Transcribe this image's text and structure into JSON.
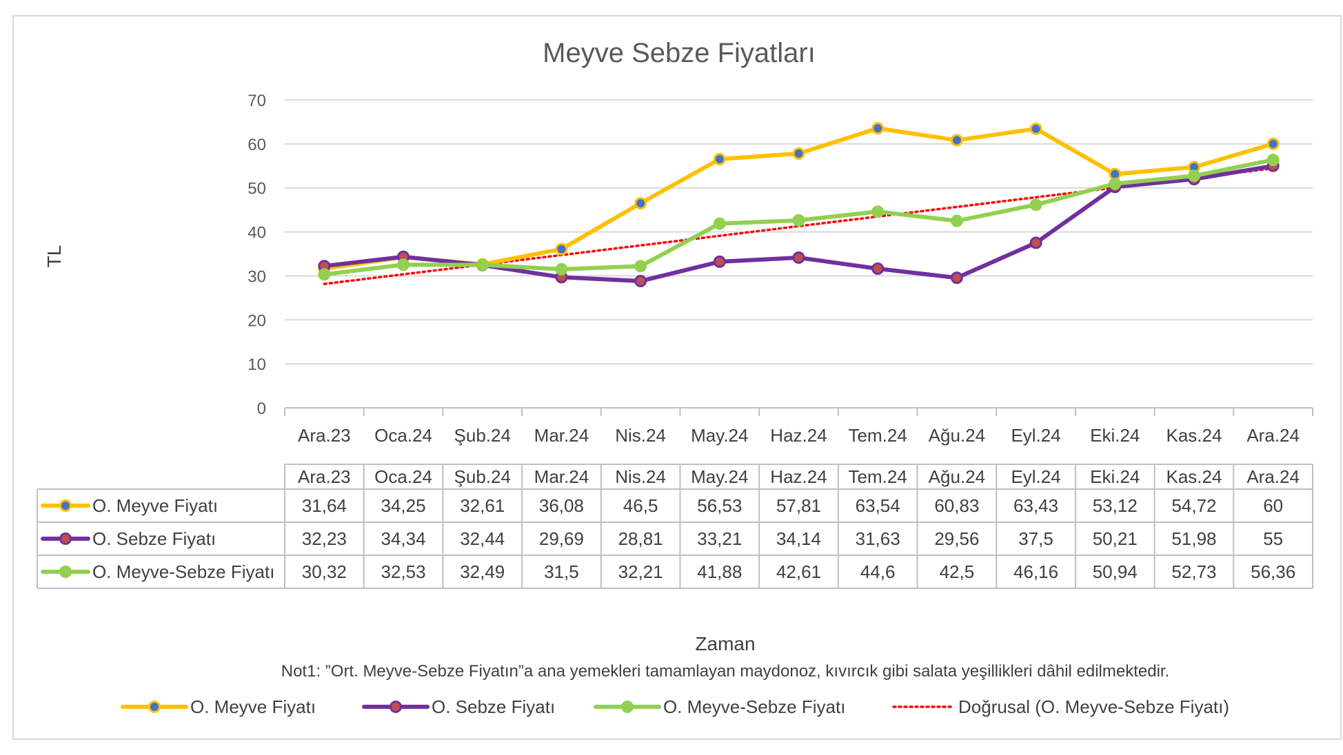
{
  "chart_data": {
    "type": "line",
    "title": "Meyve Sebze Fiyatları",
    "ylabel": "TL",
    "xlabel": "Zaman",
    "ylim": [
      0,
      70
    ],
    "yticks": [
      0,
      10,
      20,
      30,
      40,
      50,
      60,
      70
    ],
    "grid": true,
    "categories": [
      "Ara.23",
      "Oca.24",
      "Şub.24",
      "Mar.24",
      "Nis.24",
      "May.24",
      "Haz.24",
      "Tem.24",
      "Ağu.24",
      "Eyl.24",
      "Eki.24",
      "Kas.24",
      "Ara.24"
    ],
    "series": [
      {
        "name": "O. Meyve Fiyatı",
        "color": "#FFC000",
        "marker": "#4472C4",
        "values": [
          31.64,
          34.25,
          32.61,
          36.08,
          46.5,
          56.53,
          57.81,
          63.54,
          60.83,
          63.43,
          53.12,
          54.72,
          60
        ],
        "labels": [
          "31,64",
          "34,25",
          "32,61",
          "36,08",
          "46,5",
          "56,53",
          "57,81",
          "63,54",
          "60,83",
          "63,43",
          "53,12",
          "54,72",
          "60"
        ]
      },
      {
        "name": "O. Sebze Fiyatı",
        "color": "#7030A0",
        "marker": "#C0504D",
        "values": [
          32.23,
          34.34,
          32.44,
          29.69,
          28.81,
          33.21,
          34.14,
          31.63,
          29.56,
          37.5,
          50.21,
          51.98,
          55
        ],
        "labels": [
          "32,23",
          "34,34",
          "32,44",
          "29,69",
          "28,81",
          "33,21",
          "34,14",
          "31,63",
          "29,56",
          "37,5",
          "50,21",
          "51,98",
          "55"
        ]
      },
      {
        "name": "O. Meyve-Sebze Fiyatı",
        "color": "#92D050",
        "marker": "#92D050",
        "values": [
          30.32,
          32.53,
          32.49,
          31.5,
          32.21,
          41.88,
          42.61,
          44.6,
          42.5,
          46.16,
          50.94,
          52.73,
          56.36
        ],
        "labels": [
          "30,32",
          "32,53",
          "32,49",
          "31,5",
          "32,21",
          "41,88",
          "42,61",
          "44,6",
          "42,5",
          "46,16",
          "50,94",
          "52,73",
          "56,36"
        ]
      }
    ],
    "trendline": {
      "name": "Doğrusal (O. Meyve-Sebze Fiyatı)",
      "color": "#FF0000",
      "of_series": 2,
      "style": "dotted"
    },
    "legend_position": "bottom",
    "note": "Not1: ”Ort. Meyve-Sebze Fiyatın”a ana yemekleri tamamlayan maydonoz, kıvırcık gibi salata yeşillikleri dâhil edilmektedir."
  }
}
